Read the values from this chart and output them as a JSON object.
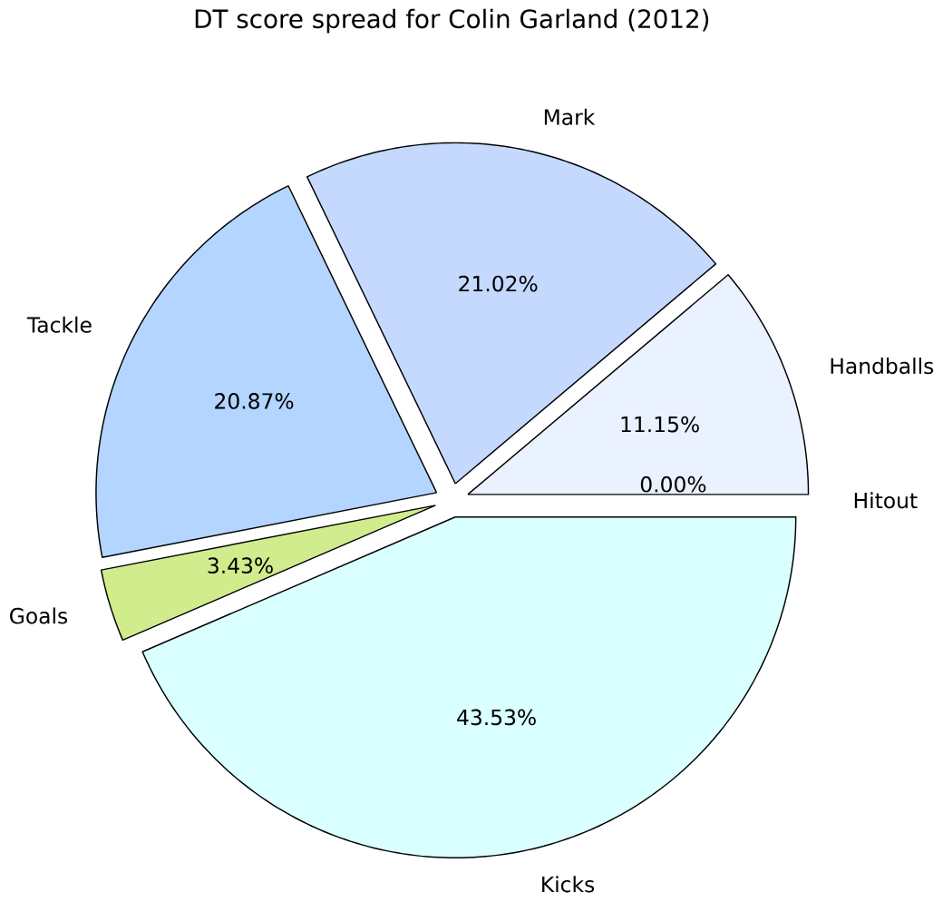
{
  "chart_data": {
    "type": "pie",
    "title": "DT score spread for Colin Garland (2012)",
    "categories": [
      "Handballs",
      "Mark",
      "Tackle",
      "Goals",
      "Kicks",
      "Hitout"
    ],
    "values": [
      11.15,
      21.02,
      20.87,
      3.43,
      43.53,
      0.0
    ],
    "value_labels": [
      "11.15%",
      "21.02%",
      "20.87%",
      "3.43%",
      "43.53%",
      "0.00%"
    ],
    "colors": [
      "#eaf1ff",
      "#c5d9ff",
      "#b3d5ff",
      "#d0ec8c",
      "#d9ffff",
      "#e8e8ff"
    ]
  }
}
